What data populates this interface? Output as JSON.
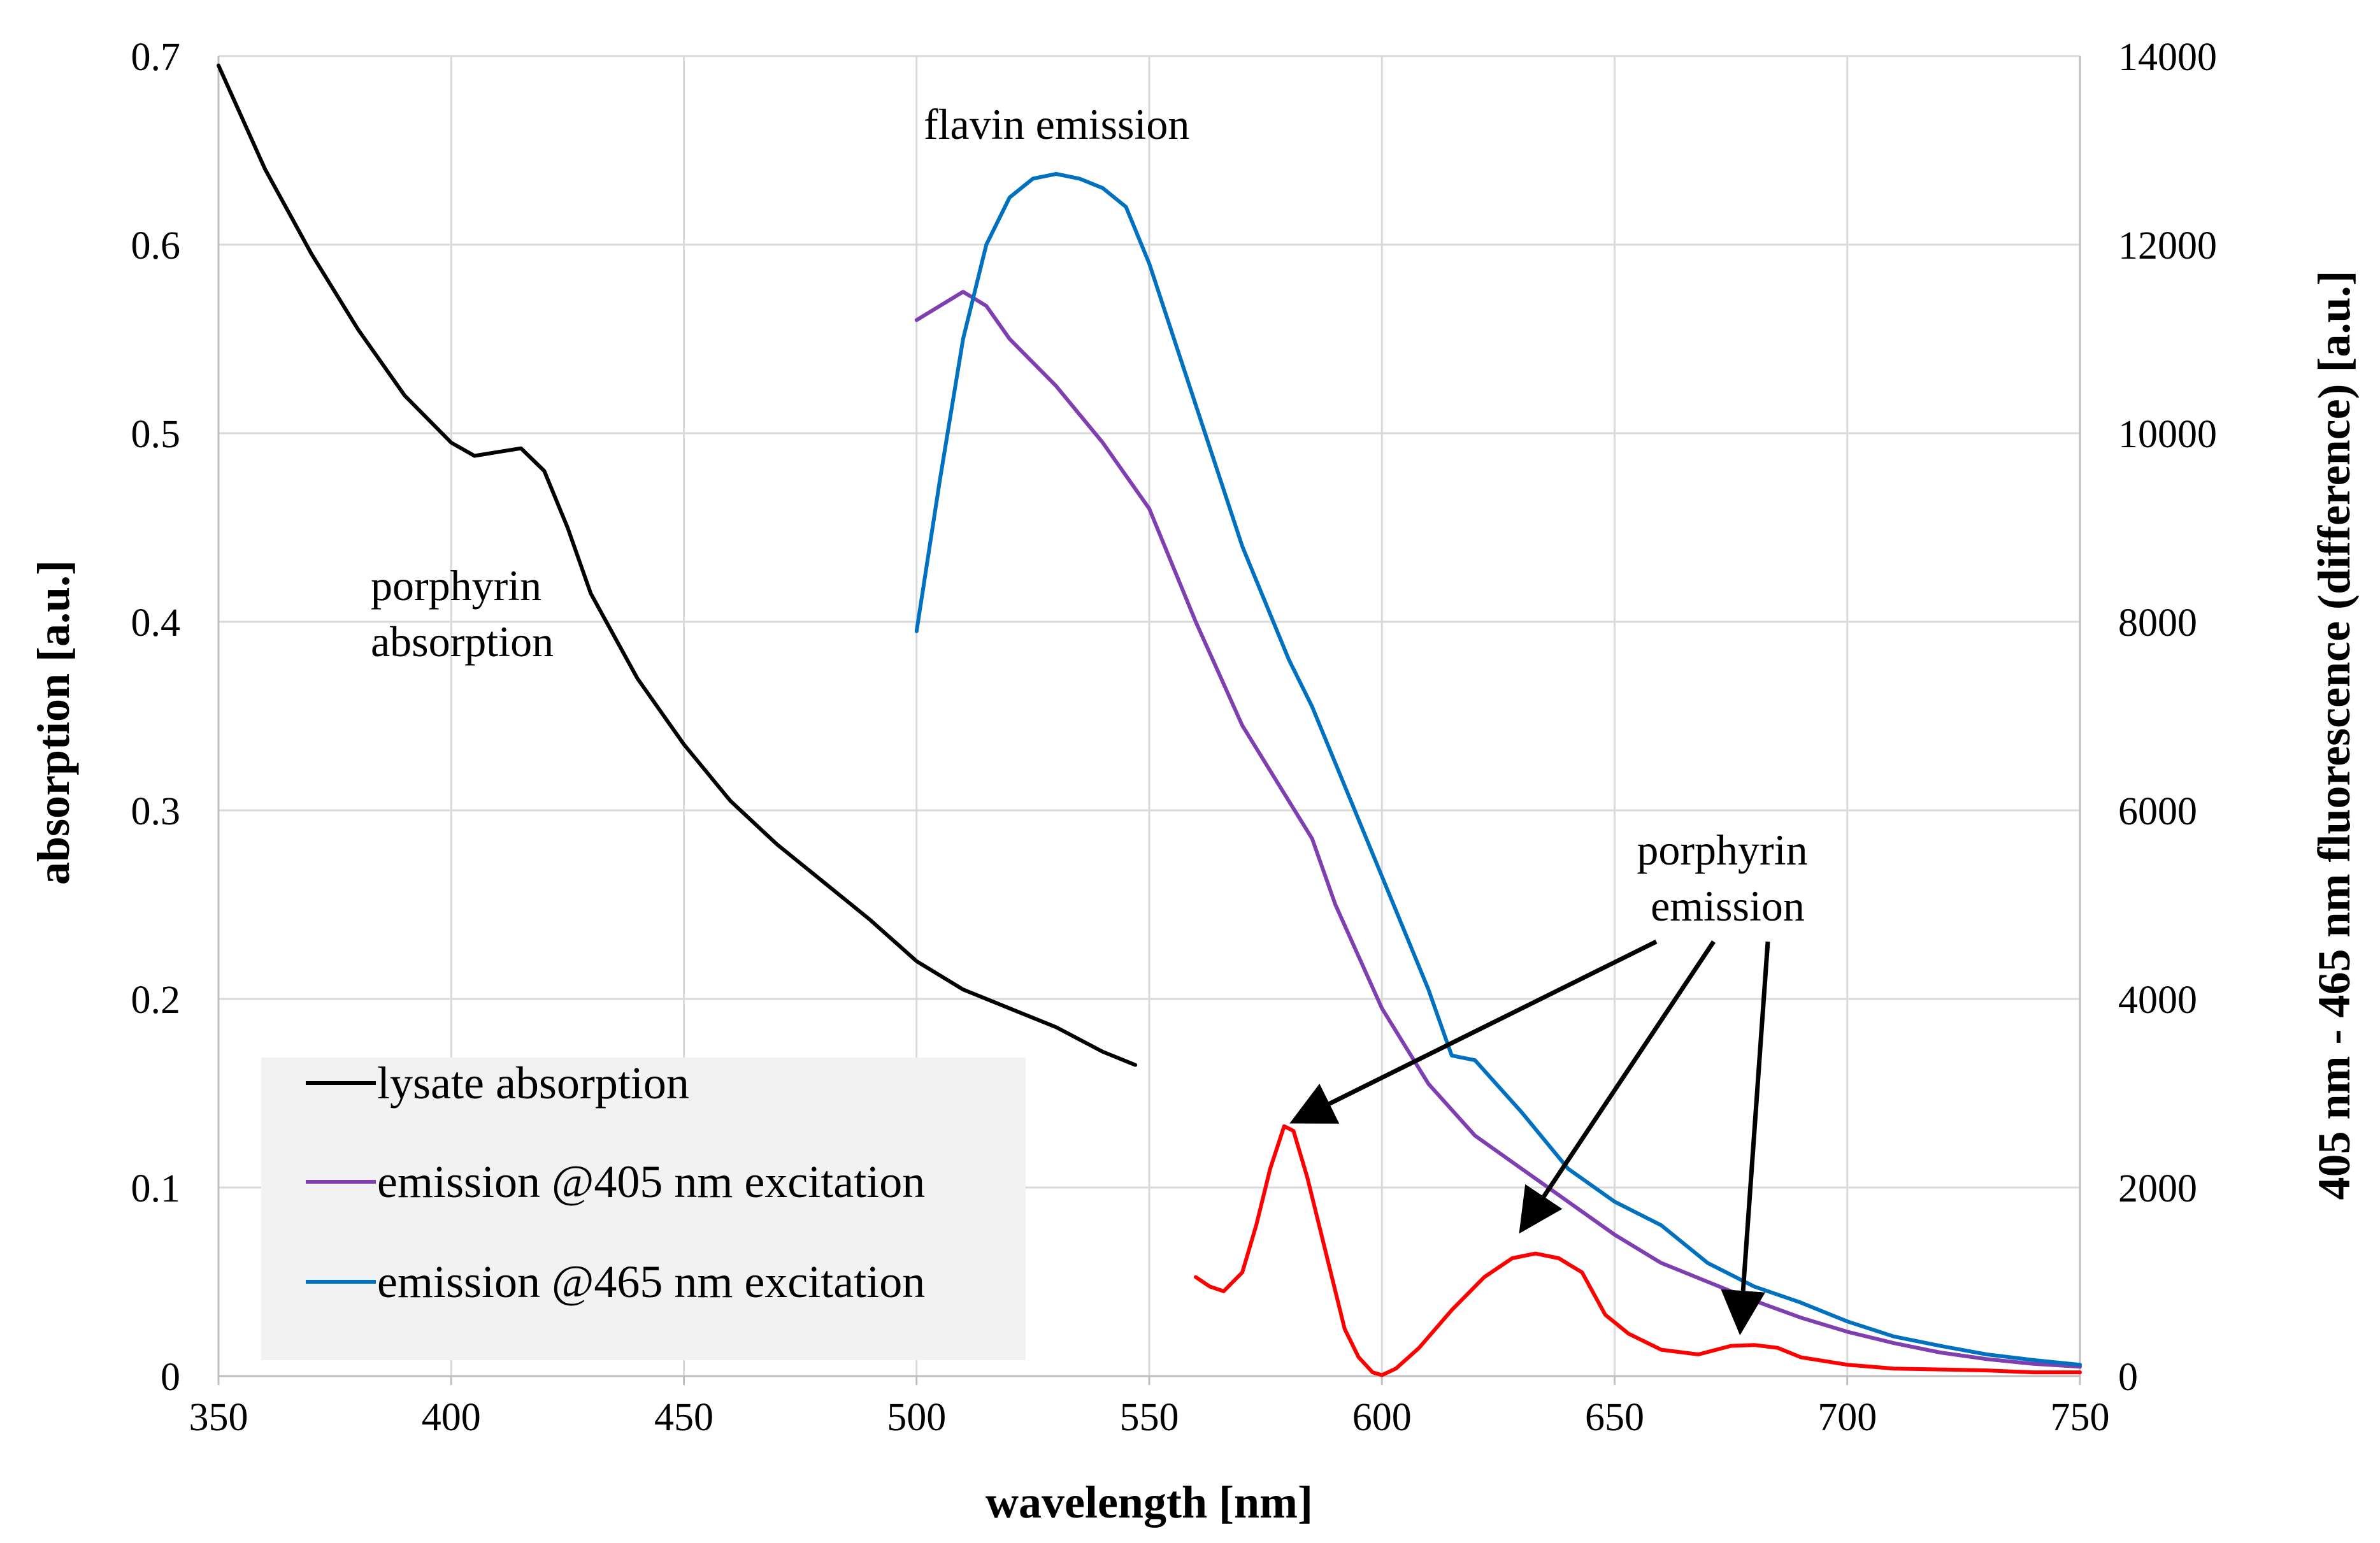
{
  "chart_data": {
    "type": "line",
    "xlabel": "wavelength [nm]",
    "ylabel_left": "absorption [a.u.]",
    "ylabel_right": "405 nm - 465 nm fluorescence (difference) [a.u.]",
    "xlim": [
      350,
      750
    ],
    "ylim_left": [
      0,
      0.7
    ],
    "ylim_right": [
      0,
      14000
    ],
    "grid": true,
    "x_ticks": [
      "350",
      "400",
      "450",
      "500",
      "550",
      "600",
      "650",
      "700",
      "750"
    ],
    "y_left_ticks": [
      "0",
      "0.1",
      "0.2",
      "0.3",
      "0.4",
      "0.5",
      "0.6",
      "0.7"
    ],
    "y_right_ticks": [
      "0",
      "2000",
      "4000",
      "6000",
      "8000",
      "10000",
      "12000",
      "14000"
    ],
    "legend": {
      "placement": "bottom-left",
      "entries": [
        "lysate absorption",
        "emission @405 nm excitation",
        "emission @465 nm excitation"
      ]
    },
    "series": [
      {
        "name": "lysate absorption",
        "axis": "left",
        "color": "#000000",
        "points": [
          [
            350,
            0.695
          ],
          [
            360,
            0.64
          ],
          [
            370,
            0.595
          ],
          [
            380,
            0.555
          ],
          [
            390,
            0.52
          ],
          [
            400,
            0.495
          ],
          [
            405,
            0.488
          ],
          [
            410,
            0.49
          ],
          [
            415,
            0.492
          ],
          [
            420,
            0.48
          ],
          [
            425,
            0.45
          ],
          [
            430,
            0.415
          ],
          [
            440,
            0.37
          ],
          [
            450,
            0.335
          ],
          [
            460,
            0.305
          ],
          [
            470,
            0.282
          ],
          [
            480,
            0.262
          ],
          [
            490,
            0.242
          ],
          [
            500,
            0.22
          ],
          [
            510,
            0.205
          ],
          [
            520,
            0.195
          ],
          [
            530,
            0.185
          ],
          [
            540,
            0.172
          ],
          [
            547,
            0.165
          ]
        ]
      },
      {
        "name": "emission @405 nm excitation",
        "axis": "right",
        "color": "#7F3FB0",
        "points": [
          [
            500,
            11200
          ],
          [
            505,
            11350
          ],
          [
            510,
            11500
          ],
          [
            515,
            11350
          ],
          [
            520,
            11000
          ],
          [
            530,
            10500
          ],
          [
            540,
            9900
          ],
          [
            550,
            9200
          ],
          [
            560,
            8000
          ],
          [
            570,
            6900
          ],
          [
            580,
            6100
          ],
          [
            585,
            5700
          ],
          [
            590,
            5000
          ],
          [
            600,
            3900
          ],
          [
            610,
            3100
          ],
          [
            620,
            2550
          ],
          [
            630,
            2200
          ],
          [
            640,
            1850
          ],
          [
            650,
            1500
          ],
          [
            660,
            1200
          ],
          [
            670,
            1000
          ],
          [
            680,
            800
          ],
          [
            690,
            620
          ],
          [
            700,
            470
          ],
          [
            710,
            350
          ],
          [
            720,
            250
          ],
          [
            730,
            180
          ],
          [
            740,
            130
          ],
          [
            750,
            100
          ]
        ]
      },
      {
        "name": "emission @465 nm excitation",
        "axis": "right",
        "color": "#0070C0",
        "points": [
          [
            500,
            7900
          ],
          [
            505,
            9500
          ],
          [
            510,
            11000
          ],
          [
            515,
            12000
          ],
          [
            520,
            12500
          ],
          [
            525,
            12700
          ],
          [
            530,
            12750
          ],
          [
            535,
            12700
          ],
          [
            540,
            12600
          ],
          [
            545,
            12400
          ],
          [
            550,
            11800
          ],
          [
            560,
            10300
          ],
          [
            570,
            8800
          ],
          [
            580,
            7600
          ],
          [
            585,
            7100
          ],
          [
            590,
            6500
          ],
          [
            600,
            5300
          ],
          [
            610,
            4100
          ],
          [
            615,
            3400
          ],
          [
            620,
            3350
          ],
          [
            630,
            2800
          ],
          [
            640,
            2200
          ],
          [
            650,
            1850
          ],
          [
            660,
            1600
          ],
          [
            665,
            1400
          ],
          [
            670,
            1200
          ],
          [
            680,
            950
          ],
          [
            690,
            780
          ],
          [
            700,
            580
          ],
          [
            710,
            420
          ],
          [
            720,
            320
          ],
          [
            730,
            230
          ],
          [
            740,
            170
          ],
          [
            750,
            120
          ]
        ]
      },
      {
        "name": "405 nm - 465 nm fluorescence difference",
        "axis": "right",
        "color": "#FF0000",
        "points": [
          [
            560,
            1050
          ],
          [
            563,
            950
          ],
          [
            566,
            900
          ],
          [
            570,
            1100
          ],
          [
            573,
            1600
          ],
          [
            576,
            2200
          ],
          [
            579,
            2650
          ],
          [
            581,
            2600
          ],
          [
            584,
            2100
          ],
          [
            588,
            1300
          ],
          [
            592,
            500
          ],
          [
            595,
            200
          ],
          [
            598,
            40
          ],
          [
            600,
            10
          ],
          [
            603,
            80
          ],
          [
            608,
            300
          ],
          [
            615,
            700
          ],
          [
            622,
            1050
          ],
          [
            628,
            1250
          ],
          [
            633,
            1300
          ],
          [
            638,
            1250
          ],
          [
            643,
            1100
          ],
          [
            648,
            650
          ],
          [
            653,
            450
          ],
          [
            660,
            280
          ],
          [
            668,
            230
          ],
          [
            675,
            320
          ],
          [
            680,
            330
          ],
          [
            685,
            300
          ],
          [
            690,
            200
          ],
          [
            700,
            120
          ],
          [
            710,
            80
          ],
          [
            720,
            70
          ],
          [
            730,
            60
          ],
          [
            740,
            40
          ],
          [
            750,
            40
          ]
        ]
      }
    ],
    "annotations": [
      {
        "text": "flavin emission",
        "lines": [
          "flavin emission"
        ]
      },
      {
        "text": "porphyrin absorption",
        "lines": [
          "porphyrin",
          "absorption"
        ]
      },
      {
        "text": "porphyrin emission",
        "lines": [
          "porphyrin",
          "emission"
        ],
        "arrow_targets": [
          [
            581,
            2700
          ],
          [
            630,
            1550
          ],
          [
            677,
            480
          ]
        ]
      }
    ]
  }
}
